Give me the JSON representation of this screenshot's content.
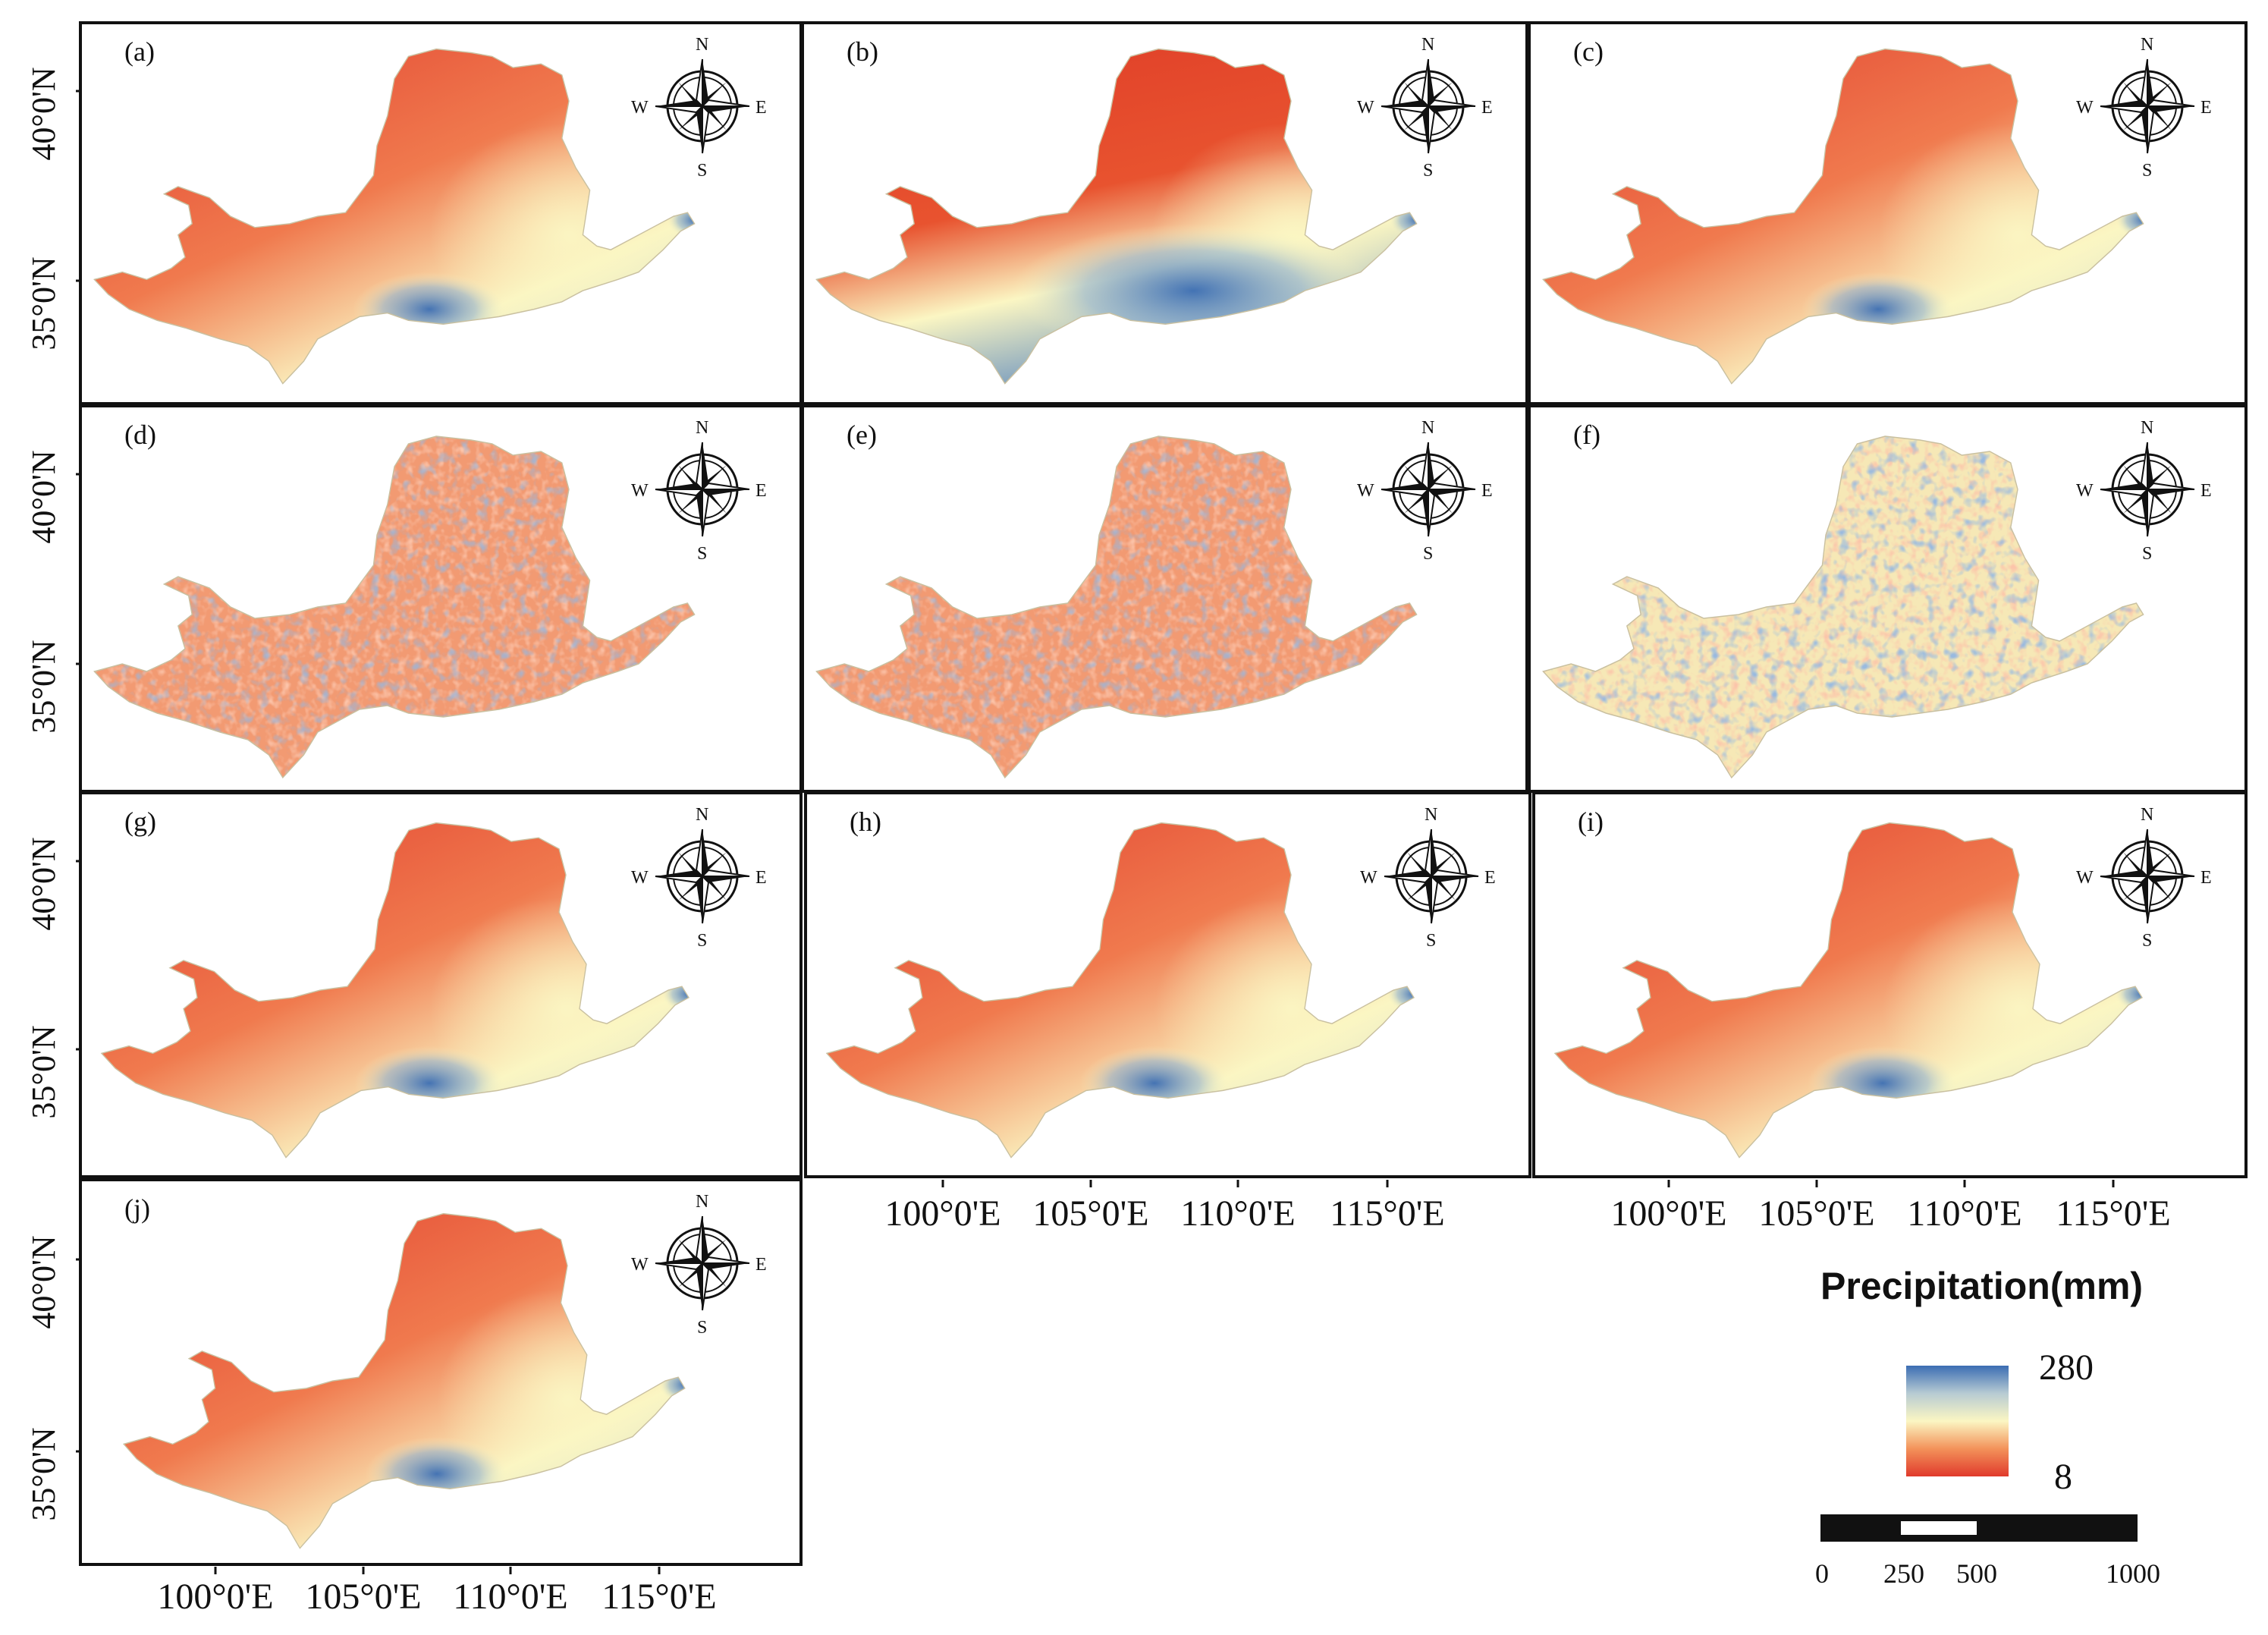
{
  "figure": {
    "panels": [
      {
        "label": "(a)",
        "variant": "smooth-a"
      },
      {
        "label": "(b)",
        "variant": "smooth-b"
      },
      {
        "label": "(c)",
        "variant": "smooth-c"
      },
      {
        "label": "(d)",
        "variant": "noisy-d"
      },
      {
        "label": "(e)",
        "variant": "noisy-e"
      },
      {
        "label": "(f)",
        "variant": "noisy-f"
      },
      {
        "label": "(g)",
        "variant": "smooth-g"
      },
      {
        "label": "(h)",
        "variant": "smooth-h"
      },
      {
        "label": "(i)",
        "variant": "smooth-i"
      },
      {
        "label": "(j)",
        "variant": "smooth-j"
      }
    ],
    "compass": {
      "north": "N",
      "south": "S",
      "east": "E",
      "west": "W"
    },
    "latitude_labels": [
      "40°0'N",
      "35°0'N"
    ],
    "longitude_labels": [
      "100°0'E",
      "105°0'E",
      "110°0'E",
      "115°0'E"
    ]
  },
  "legend": {
    "title": "Precipitation(mm)",
    "max_label": "280",
    "min_label": "8",
    "colors": {
      "high": "#3b6db3",
      "mid": "#fbf6c3",
      "low": "#e03a2c"
    }
  },
  "scale_bar": {
    "labels": [
      "0",
      "250",
      "500",
      "1000"
    ]
  }
}
